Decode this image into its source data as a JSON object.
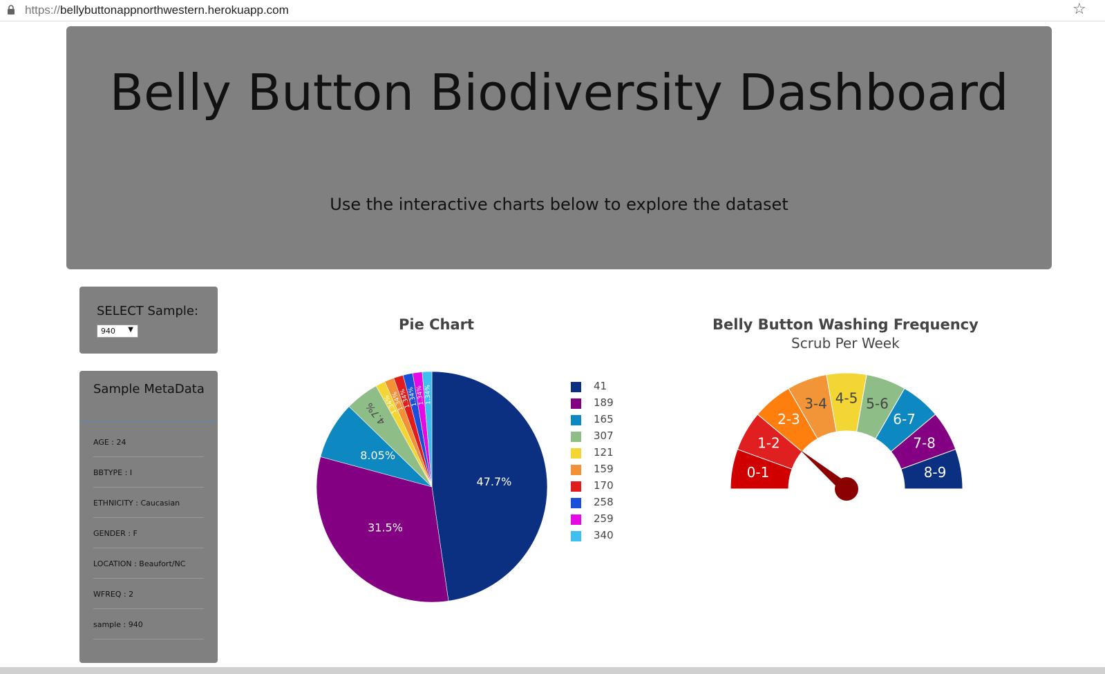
{
  "browser": {
    "url_protocol": "https://",
    "url_host": "bellybuttonappnorthwestern.herokuapp.com",
    "bookmark_icon": "star-icon",
    "lock_icon": "lock-icon"
  },
  "header": {
    "title": "Belly Button Biodiversity Dashboard",
    "subtitle": "Use the interactive charts below to explore the dataset"
  },
  "selector": {
    "label": "SELECT Sample:",
    "selected": "940"
  },
  "metadata": {
    "heading": "Sample MetaData",
    "items": [
      "AGE : 24",
      "BBTYPE : I",
      "ETHNICITY : Caucasian",
      "GENDER : F",
      "LOCATION : Beaufort/NC",
      "WFREQ : 2",
      "sample : 940"
    ]
  },
  "colors": {
    "panel": "#808080",
    "pie": [
      "#0b3082",
      "#830083",
      "#0d88c1",
      "#8fbd88",
      "#f3d634",
      "#f29136",
      "#e11c1c",
      "#1a4fdc",
      "#e50ae5",
      "#3dc0f0"
    ],
    "gauge": [
      "#d10000",
      "#e02020",
      "#ff7f0e",
      "#f29538",
      "#f3d634",
      "#8fbd88",
      "#0d88c1",
      "#830083",
      "#0b3082"
    ],
    "needle": "#8b0000"
  },
  "chart_data": [
    {
      "type": "pie",
      "title": "Pie Chart",
      "categories": [
        "41",
        "189",
        "165",
        "307",
        "121",
        "159",
        "170",
        "258",
        "259",
        "340"
      ],
      "values": [
        47.7,
        31.5,
        8.05,
        4.7,
        1.34,
        1.34,
        1.34,
        1.34,
        1.34,
        1.34
      ],
      "labels": [
        "47.7%",
        "31.5%",
        "8.05%",
        "4.7%",
        "1.34%",
        "1.34%",
        "1.34%",
        "1.34%",
        "1.34%",
        "1.34%"
      ],
      "legend": "right"
    },
    {
      "type": "gauge",
      "title": "Belly Button Washing Frequency",
      "subtitle": "Scrub Per Week",
      "sections": [
        "0-1",
        "1-2",
        "2-3",
        "3-4",
        "4-5",
        "5-6",
        "6-7",
        "7-8",
        "8-9"
      ],
      "value": 2,
      "range": [
        0,
        9
      ]
    }
  ]
}
